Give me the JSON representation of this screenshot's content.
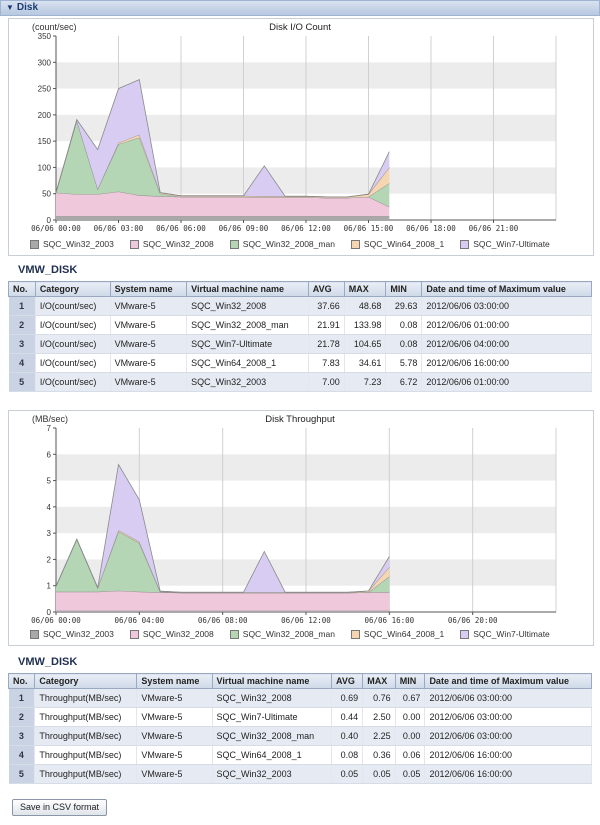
{
  "panel": {
    "title": "Disk"
  },
  "chart_data": [
    {
      "type": "area",
      "title": "Disk I/O Count",
      "ylabel": "(count/sec)",
      "ylim": [
        0,
        350
      ],
      "yticks": [
        0,
        50,
        100,
        150,
        200,
        250,
        300,
        350
      ],
      "xlabels": [
        "06/06 00:00",
        "06/06 03:00",
        "06/06 06:00",
        "06/06 09:00",
        "06/06 12:00",
        "06/06 15:00",
        "06/06 18:00",
        "06/06 21:00"
      ],
      "x_hours": [
        0,
        1,
        2,
        3,
        4,
        5,
        6,
        7,
        8,
        9,
        10,
        11,
        12,
        13,
        14,
        15,
        16
      ],
      "stacked": true,
      "series": [
        {
          "name": "SQC_Win32_2003",
          "color": "#a9a9a9",
          "values": [
            7,
            7,
            7,
            7,
            7,
            7,
            7,
            7,
            7,
            7,
            7,
            7,
            7,
            7,
            7,
            7,
            7
          ]
        },
        {
          "name": "SQC_Win32_2008",
          "color": "#f0c8dc",
          "values": [
            45,
            42,
            42,
            47,
            40,
            38,
            37,
            37,
            37,
            37,
            36,
            36,
            36,
            35,
            35,
            37,
            18
          ]
        },
        {
          "name": "SQC_Win32_2008_man",
          "color": "#b5d6b5",
          "values": [
            0,
            140,
            10,
            90,
            110,
            5,
            0,
            0,
            0,
            0,
            0,
            0,
            0,
            0,
            0,
            0,
            45
          ]
        },
        {
          "name": "SQC_Win64_2008_1",
          "color": "#f5d6b0",
          "values": [
            0,
            0,
            0,
            3,
            5,
            2,
            2,
            2,
            2,
            2,
            2,
            2,
            2,
            2,
            2,
            5,
            30
          ]
        },
        {
          "name": "SQC_Win7-Ultimate",
          "color": "#d8ccf2",
          "values": [
            0,
            2,
            75,
            103,
            105,
            0,
            0,
            0,
            0,
            0,
            58,
            0,
            0,
            0,
            0,
            0,
            30
          ]
        }
      ]
    },
    {
      "type": "area",
      "title": "Disk Throughput",
      "ylabel": "(MB/sec)",
      "ylim": [
        0,
        7
      ],
      "yticks": [
        0,
        1,
        2,
        3,
        4,
        5,
        6,
        7
      ],
      "xlabels": [
        "06/06 00:00",
        "06/06 04:00",
        "06/06 08:00",
        "06/06 12:00",
        "06/06 16:00",
        "06/06 20:00"
      ],
      "x_hours": [
        0,
        1,
        2,
        3,
        4,
        5,
        6,
        7,
        8,
        9,
        10,
        11,
        12,
        13,
        14,
        15,
        16
      ],
      "stacked": true,
      "series": [
        {
          "name": "SQC_Win32_2003",
          "color": "#a9a9a9",
          "values": [
            0.05,
            0.05,
            0.05,
            0.05,
            0.05,
            0.05,
            0.05,
            0.05,
            0.05,
            0.05,
            0.05,
            0.05,
            0.05,
            0.05,
            0.05,
            0.05,
            0.05
          ]
        },
        {
          "name": "SQC_Win32_2008",
          "color": "#f0c8dc",
          "values": [
            0.72,
            0.72,
            0.72,
            0.76,
            0.72,
            0.7,
            0.68,
            0.68,
            0.68,
            0.68,
            0.68,
            0.68,
            0.68,
            0.68,
            0.68,
            0.7,
            0.7
          ]
        },
        {
          "name": "SQC_Win32_2008_man",
          "color": "#b5d6b5",
          "values": [
            0.2,
            2.0,
            0.15,
            2.25,
            1.85,
            0.02,
            0,
            0,
            0,
            0,
            0,
            0,
            0,
            0,
            0,
            0,
            0.6
          ]
        },
        {
          "name": "SQC_Win64_2008_1",
          "color": "#f5d6b0",
          "values": [
            0,
            0,
            0,
            0.05,
            0.05,
            0.02,
            0.02,
            0.02,
            0.02,
            0.02,
            0.02,
            0.02,
            0.02,
            0.02,
            0.02,
            0.05,
            0.36
          ]
        },
        {
          "name": "SQC_Win7-Ultimate",
          "color": "#d8ccf2",
          "values": [
            0,
            0,
            0,
            2.5,
            1.6,
            0,
            0,
            0,
            0,
            0,
            1.55,
            0,
            0,
            0,
            0,
            0,
            0.4
          ]
        }
      ]
    }
  ],
  "table1": {
    "title": "VMW_DISK",
    "headers": [
      "No.",
      "Category",
      "System name",
      "Virtual machine name",
      "AVG",
      "MAX",
      "MIN",
      "Date and time of Maximum value"
    ],
    "rows": [
      [
        "1",
        "I/O(count/sec)",
        "VMware-5",
        "SQC_Win32_2008",
        "37.66",
        "48.68",
        "29.63",
        "2012/06/06 03:00:00"
      ],
      [
        "2",
        "I/O(count/sec)",
        "VMware-5",
        "SQC_Win32_2008_man",
        "21.91",
        "133.98",
        "0.08",
        "2012/06/06 01:00:00"
      ],
      [
        "3",
        "I/O(count/sec)",
        "VMware-5",
        "SQC_Win7-Ultimate",
        "21.78",
        "104.65",
        "0.08",
        "2012/06/06 04:00:00"
      ],
      [
        "4",
        "I/O(count/sec)",
        "VMware-5",
        "SQC_Win64_2008_1",
        "7.83",
        "34.61",
        "5.78",
        "2012/06/06 16:00:00"
      ],
      [
        "5",
        "I/O(count/sec)",
        "VMware-5",
        "SQC_Win32_2003",
        "7.00",
        "7.23",
        "6.72",
        "2012/06/06 01:00:00"
      ]
    ]
  },
  "table2": {
    "title": "VMW_DISK",
    "headers": [
      "No.",
      "Category",
      "System name",
      "Virtual machine name",
      "AVG",
      "MAX",
      "MIN",
      "Date and time of Maximum value"
    ],
    "rows": [
      [
        "1",
        "Throughput(MB/sec)",
        "VMware-5",
        "SQC_Win32_2008",
        "0.69",
        "0.76",
        "0.67",
        "2012/06/06 03:00:00"
      ],
      [
        "2",
        "Throughput(MB/sec)",
        "VMware-5",
        "SQC_Win7-Ultimate",
        "0.44",
        "2.50",
        "0.00",
        "2012/06/06 03:00:00"
      ],
      [
        "3",
        "Throughput(MB/sec)",
        "VMware-5",
        "SQC_Win32_2008_man",
        "0.40",
        "2.25",
        "0.00",
        "2012/06/06 03:00:00"
      ],
      [
        "4",
        "Throughput(MB/sec)",
        "VMware-5",
        "SQC_Win64_2008_1",
        "0.08",
        "0.36",
        "0.06",
        "2012/06/06 16:00:00"
      ],
      [
        "5",
        "Throughput(MB/sec)",
        "VMware-5",
        "SQC_Win32_2003",
        "0.05",
        "0.05",
        "0.05",
        "2012/06/06 16:00:00"
      ]
    ]
  },
  "buttons": {
    "save_csv": "Save in CSV format"
  }
}
